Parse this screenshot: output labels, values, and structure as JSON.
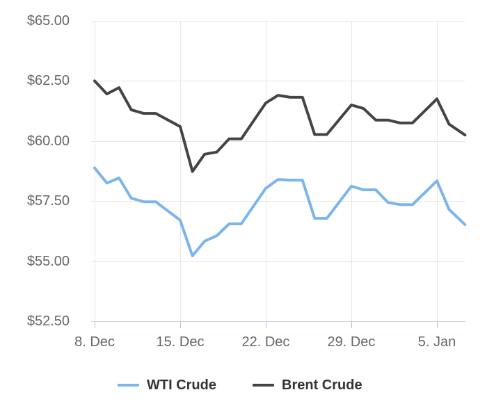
{
  "chart_data": {
    "type": "line",
    "title": "",
    "xlabel": "",
    "ylabel": "",
    "ylim": [
      52.5,
      65.0
    ],
    "grid": true,
    "legend_position": "bottom",
    "y_ticks": [
      "$52.50",
      "$55.00",
      "$57.50",
      "$60.00",
      "$62.50",
      "$65.00"
    ],
    "y_tick_values": [
      52.5,
      55.0,
      57.5,
      60.0,
      62.5,
      65.0
    ],
    "x_ticks": [
      "8. Dec",
      "15. Dec",
      "22. Dec",
      "29. Dec",
      "5. Jan"
    ],
    "x_tick_days": [
      0,
      7,
      14,
      21,
      28
    ],
    "x_range_days": [
      0,
      30.3
    ],
    "x_days": [
      0,
      1,
      2,
      3,
      4,
      5,
      7,
      8,
      9,
      10,
      11,
      12,
      14,
      15,
      16,
      17,
      18,
      19,
      21,
      22,
      23,
      24,
      25,
      26,
      28,
      29,
      30.3
    ],
    "x": [
      "8. Dec",
      "9. Dec",
      "10. Dec",
      "11. Dec",
      "12. Dec",
      "13. Dec",
      "15. Dec",
      "16. Dec",
      "17. Dec",
      "18. Dec",
      "19. Dec",
      "20. Dec",
      "22. Dec",
      "23. Dec",
      "24. Dec",
      "25. Dec",
      "26. Dec",
      "27. Dec",
      "29. Dec",
      "30. Dec",
      "31. Dec",
      "1. Jan",
      "2. Jan",
      "3. Jan",
      "5. Jan",
      "6. Jan",
      "7. Jan"
    ],
    "series": [
      {
        "name": "WTI Crude",
        "color": "#7cb5ec",
        "values": [
          58.88,
          58.25,
          58.46,
          57.62,
          57.47,
          57.47,
          56.7,
          55.22,
          55.83,
          56.06,
          56.55,
          56.55,
          58.03,
          58.4,
          58.37,
          58.37,
          56.78,
          56.78,
          58.12,
          57.97,
          57.97,
          57.44,
          57.35,
          57.35,
          58.34,
          57.15,
          56.52
        ]
      },
      {
        "name": "Brent Crude",
        "color": "#434348",
        "values": [
          62.5,
          61.96,
          62.22,
          61.3,
          61.15,
          61.15,
          60.6,
          58.73,
          59.45,
          59.54,
          60.09,
          60.09,
          61.58,
          61.9,
          61.82,
          61.82,
          60.27,
          60.27,
          61.5,
          61.35,
          60.87,
          60.87,
          60.75,
          60.75,
          61.75,
          60.7,
          60.25
        ]
      }
    ]
  },
  "legend": {
    "items": [
      {
        "label": "WTI Crude",
        "color": "#7cb5ec"
      },
      {
        "label": "Brent Crude",
        "color": "#434348"
      }
    ]
  },
  "colors": {
    "gridline": "#e6e6e6",
    "x_axis_line": "#ccd6eb",
    "tick": "#c0c0c0",
    "axis_label": "#666666",
    "legend_text": "#333333"
  }
}
